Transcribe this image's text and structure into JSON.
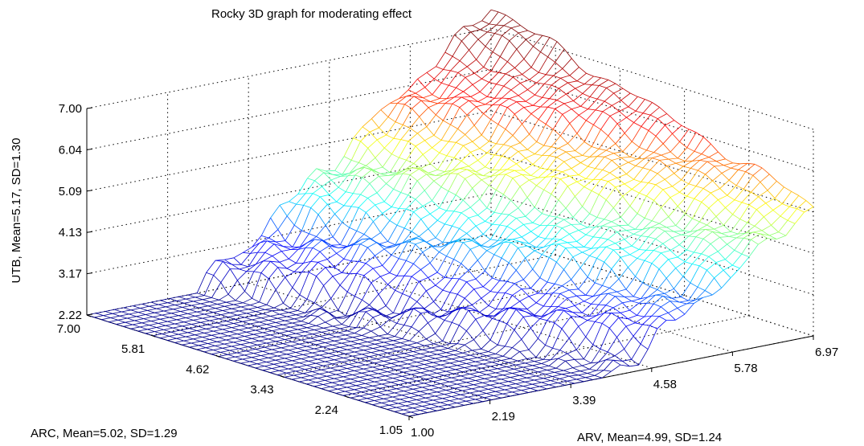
{
  "chart_data": {
    "type": "surface3d",
    "title": "Rocky 3D graph for moderating effect",
    "x_axis": {
      "label": "ARV, Mean=4.99, SD=1.24",
      "ticks": [
        "1.00",
        "2.19",
        "3.39",
        "4.58",
        "5.78",
        "6.97"
      ],
      "range": [
        1.0,
        6.97
      ]
    },
    "y_axis": {
      "label": "ARC, Mean=5.02, SD=1.29",
      "ticks": [
        "7.00",
        "5.81",
        "4.62",
        "3.43",
        "2.24",
        "1.05"
      ],
      "range": [
        1.05,
        7.0
      ]
    },
    "z_axis": {
      "label": "UTB, Mean=5.17, SD=1.30",
      "ticks": [
        "2.22",
        "3.17",
        "4.13",
        "5.09",
        "6.04",
        "7.00"
      ],
      "range": [
        2.22,
        7.0
      ]
    },
    "grid": true,
    "colormap": "jet",
    "surface_style": "wireframe mesh",
    "color_map_colors": [
      "#00008f",
      "#0000ff",
      "#00ffff",
      "#ffff00",
      "#ff0000",
      "#800000"
    ]
  }
}
